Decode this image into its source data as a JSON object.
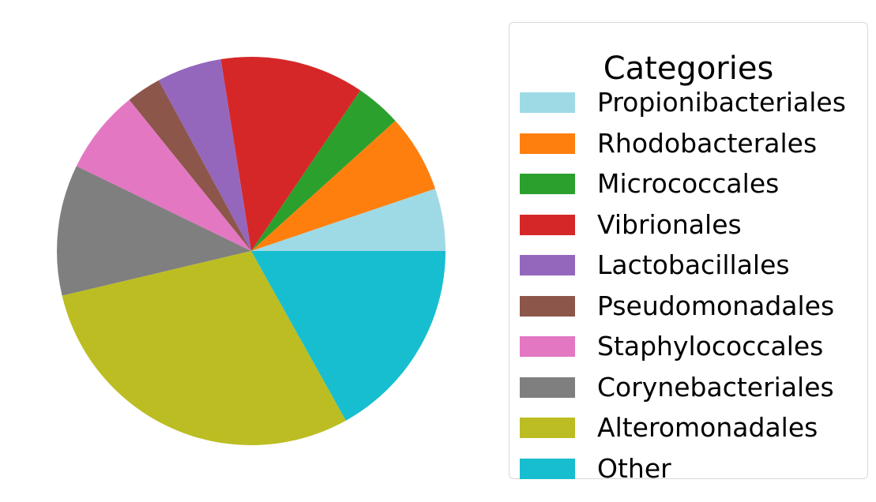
{
  "chart_data": {
    "type": "pie",
    "title": "",
    "legend_title": "Categories",
    "legend_position": "right",
    "start_angle_deg": 0,
    "direction": "counterclockwise",
    "slices": [
      {
        "label": "Propionibacteriales",
        "value": 5.2,
        "color": "#9edae5"
      },
      {
        "label": "Rhodobacterales",
        "value": 6.5,
        "color": "#ff7f0e"
      },
      {
        "label": "Micrococcales",
        "value": 3.8,
        "color": "#2ca02c"
      },
      {
        "label": "Vibrionales",
        "value": 12.0,
        "color": "#d62728"
      },
      {
        "label": "Lactobacillales",
        "value": 5.4,
        "color": "#9467bd"
      },
      {
        "label": "Pseudomonadales",
        "value": 2.9,
        "color": "#8c564b"
      },
      {
        "label": "Staphylococcales",
        "value": 7.0,
        "color": "#e377c2"
      },
      {
        "label": "Corynebacteriales",
        "value": 10.9,
        "color": "#7f7f7f"
      },
      {
        "label": "Alteromonadales",
        "value": 29.4,
        "color": "#bcbd22"
      },
      {
        "label": "Other",
        "value": 16.9,
        "color": "#17becf"
      }
    ]
  }
}
